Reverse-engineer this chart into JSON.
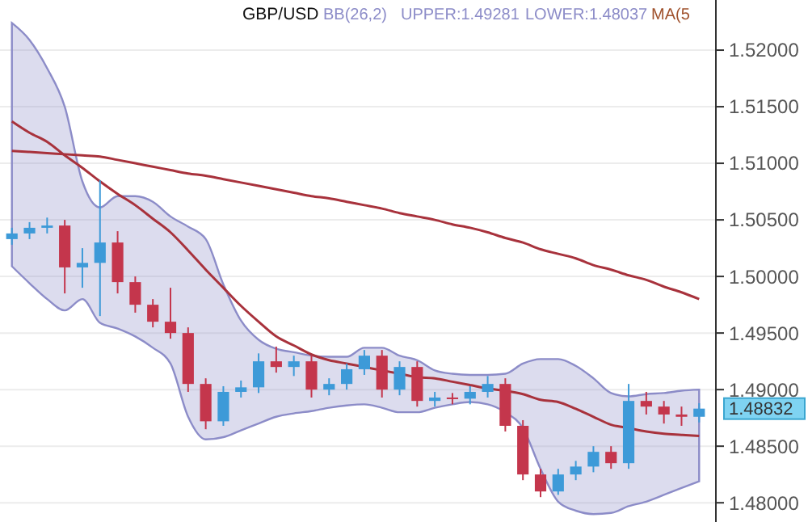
{
  "chart_data": {
    "type": "candlestick",
    "title": "GBP/USD",
    "annotations": [
      "BB(26,2)",
      "UPPER:1.49281",
      "LOWER:1.48037",
      "MA(5",
      "1.48832"
    ],
    "categories": [
      null,
      null,
      null,
      null,
      null,
      null,
      null,
      null,
      null,
      null,
      null,
      null,
      null,
      null,
      null,
      null,
      null,
      null,
      null,
      null,
      null,
      null,
      null,
      null,
      null,
      null,
      null,
      null,
      null,
      null,
      null,
      null,
      null,
      null,
      null,
      null,
      null,
      null,
      null,
      null
    ],
    "ohlc": [
      [
        1.5033,
        1.5043,
        1.5028,
        1.5038
      ],
      [
        1.5038,
        1.5048,
        1.5033,
        1.5043
      ],
      [
        1.5043,
        1.5052,
        1.5038,
        1.5045
      ],
      [
        1.5045,
        1.505,
        1.4985,
        1.5008
      ],
      [
        1.5008,
        1.5025,
        1.499,
        1.5012
      ],
      [
        1.5012,
        1.5085,
        1.4965,
        1.503
      ],
      [
        1.503,
        1.504,
        1.4985,
        1.4995
      ],
      [
        1.4995,
        1.5,
        1.4968,
        1.4975
      ],
      [
        1.4975,
        1.498,
        1.4955,
        1.496
      ],
      [
        1.496,
        1.499,
        1.4945,
        1.495
      ],
      [
        1.495,
        1.4955,
        1.4898,
        1.4905
      ],
      [
        1.4905,
        1.491,
        1.4865,
        1.4872
      ],
      [
        1.4872,
        1.4903,
        1.4868,
        1.4898
      ],
      [
        1.4898,
        1.4908,
        1.4893,
        1.4902
      ],
      [
        1.4902,
        1.4932,
        1.4897,
        1.4925
      ],
      [
        1.4925,
        1.4938,
        1.4915,
        1.492
      ],
      [
        1.492,
        1.493,
        1.4912,
        1.4925
      ],
      [
        1.4925,
        1.493,
        1.4893,
        1.49
      ],
      [
        1.49,
        1.491,
        1.4895,
        1.4905
      ],
      [
        1.4905,
        1.4923,
        1.49,
        1.4918
      ],
      [
        1.4918,
        1.4935,
        1.4913,
        1.493
      ],
      [
        1.493,
        1.4935,
        1.4893,
        1.49
      ],
      [
        1.49,
        1.4925,
        1.4895,
        1.492
      ],
      [
        1.492,
        1.4925,
        1.4885,
        1.489
      ],
      [
        1.489,
        1.4898,
        1.4885,
        1.4893
      ],
      [
        1.4893,
        1.4897,
        1.4887,
        1.4892
      ],
      [
        1.4892,
        1.4903,
        1.4887,
        1.4898
      ],
      [
        1.4898,
        1.4912,
        1.4893,
        1.4905
      ],
      [
        1.4905,
        1.491,
        1.4863,
        1.4868
      ],
      [
        1.4868,
        1.4873,
        1.482,
        1.4825
      ],
      [
        1.4825,
        1.483,
        1.4805,
        1.481
      ],
      [
        1.481,
        1.483,
        1.4807,
        1.4825
      ],
      [
        1.4825,
        1.4837,
        1.482,
        1.4832
      ],
      [
        1.4832,
        1.485,
        1.4827,
        1.4845
      ],
      [
        1.4845,
        1.485,
        1.483,
        1.4835
      ],
      [
        1.4835,
        1.4905,
        1.483,
        1.489
      ],
      [
        1.489,
        1.4898,
        1.4878,
        1.4885
      ],
      [
        1.4885,
        1.489,
        1.487,
        1.4878
      ],
      [
        1.4878,
        1.4885,
        1.4868,
        1.4876
      ],
      [
        1.4876,
        1.4888,
        1.4871,
        1.48832
      ]
    ],
    "colors": [
      "#3d9ad8",
      "#3d9ad8",
      "#3d9ad8",
      "#c4364c",
      "#3d9ad8",
      "#3d9ad8",
      "#c4364c",
      "#c4364c",
      "#c4364c",
      "#c4364c",
      "#c4364c",
      "#c4364c",
      "#3d9ad8",
      "#3d9ad8",
      "#3d9ad8",
      "#c4364c",
      "#3d9ad8",
      "#c4364c",
      "#3d9ad8",
      "#3d9ad8",
      "#3d9ad8",
      "#c4364c",
      "#3d9ad8",
      "#c4364c",
      "#3d9ad8",
      "#c4364c",
      "#3d9ad8",
      "#3d9ad8",
      "#c4364c",
      "#c4364c",
      "#c4364c",
      "#3d9ad8",
      "#3d9ad8",
      "#3d9ad8",
      "#c4364c",
      "#3d9ad8",
      "#c4364c",
      "#c4364c",
      "#c4364c",
      "#3d9ad8"
    ],
    "series": [
      {
        "type": "line",
        "color": "#8c8cc8",
        "values": [
          null,
          null,
          null,
          null,
          null,
          null,
          null,
          null,
          null,
          null,
          null,
          null,
          null,
          null,
          null,
          null,
          null,
          null,
          null,
          null,
          null,
          null,
          null,
          null,
          null,
          null,
          null,
          null,
          null,
          null,
          null,
          null,
          null,
          null,
          null,
          null,
          null,
          null,
          null,
          null
        ],
        "upper": [
          1.5224,
          1.5209,
          1.5184,
          1.515,
          1.5084,
          1.5061,
          1.5071,
          1.5071,
          1.5066,
          1.5053,
          1.5044,
          1.5033,
          1.4993,
          1.4961,
          1.4944,
          1.4936,
          1.4933,
          1.493,
          1.4929,
          1.4929,
          1.4937,
          1.4937,
          1.493,
          1.4926,
          1.4917,
          1.4914,
          1.4913,
          1.4913,
          1.4914,
          1.4923,
          1.4927,
          1.4927,
          1.4921,
          1.491,
          1.4897,
          1.4894,
          1.4896,
          1.4897,
          1.4899,
          1.49
        ],
        "lower": [
          1.5009,
          1.4994,
          1.498,
          1.497,
          1.498,
          1.4959,
          1.4954,
          1.4947,
          1.4937,
          1.4923,
          1.4876,
          1.4856,
          1.4858,
          1.4864,
          1.487,
          1.4876,
          1.4879,
          1.4881,
          1.4884,
          1.4886,
          1.4887,
          1.4884,
          1.488,
          1.488,
          1.4884,
          1.4887,
          1.4889,
          1.4887,
          1.488,
          1.4866,
          1.483,
          1.4801,
          1.4793,
          1.479,
          1.4791,
          1.4797,
          1.4801,
          1.4807,
          1.4813,
          1.4819
        ]
      },
      {
        "type": "line",
        "color": "#a8323c",
        "values": [
          1.5111,
          1.511,
          1.5109,
          1.5108,
          1.5107,
          1.5106,
          1.5103,
          1.51,
          1.5097,
          1.5094,
          1.5091,
          1.5089,
          1.5086,
          1.5083,
          1.508,
          1.5077,
          1.5074,
          1.5071,
          1.5069,
          1.5066,
          1.5063,
          1.506,
          1.5056,
          1.5053,
          1.505,
          1.5046,
          1.5043,
          1.5039,
          1.5034,
          1.503,
          1.5024,
          1.502,
          1.5016,
          1.501,
          1.5006,
          1.5001,
          1.4997,
          1.4991,
          1.4986,
          1.498
        ]
      },
      {
        "type": "line",
        "color": "#a8323c",
        "values": [
          1.5137,
          1.5127,
          1.5119,
          1.5107,
          1.5096,
          1.5084,
          1.5073,
          1.5063,
          1.5051,
          1.5039,
          1.5023,
          1.5006,
          1.499,
          1.4974,
          1.496,
          1.4947,
          1.4939,
          1.4931,
          1.4926,
          1.4923,
          1.492,
          1.4917,
          1.4914,
          1.4911,
          1.491,
          1.4907,
          1.4904,
          1.4901,
          1.4899,
          1.4896,
          1.4891,
          1.4889,
          1.4883,
          1.4876,
          1.4869,
          1.4866,
          1.4863,
          1.4861,
          1.486,
          1.4859
        ]
      }
    ],
    "ylim": [
      1.4783,
      1.52443
    ],
    "yticks": [
      {
        "value": 1.48,
        "label": "1.48000"
      },
      {
        "value": 1.485,
        "label": "1.48500"
      },
      {
        "value": 1.49,
        "label": "1.49000"
      },
      {
        "value": 1.495,
        "label": "1.49500"
      },
      {
        "value": 1.5,
        "label": "1.50000"
      },
      {
        "value": 1.505,
        "label": "1.50500"
      },
      {
        "value": 1.51,
        "label": "1.51000"
      },
      {
        "value": 1.515,
        "label": "1.51500"
      },
      {
        "value": 1.52,
        "label": "1.52000"
      }
    ],
    "grid": "y"
  }
}
